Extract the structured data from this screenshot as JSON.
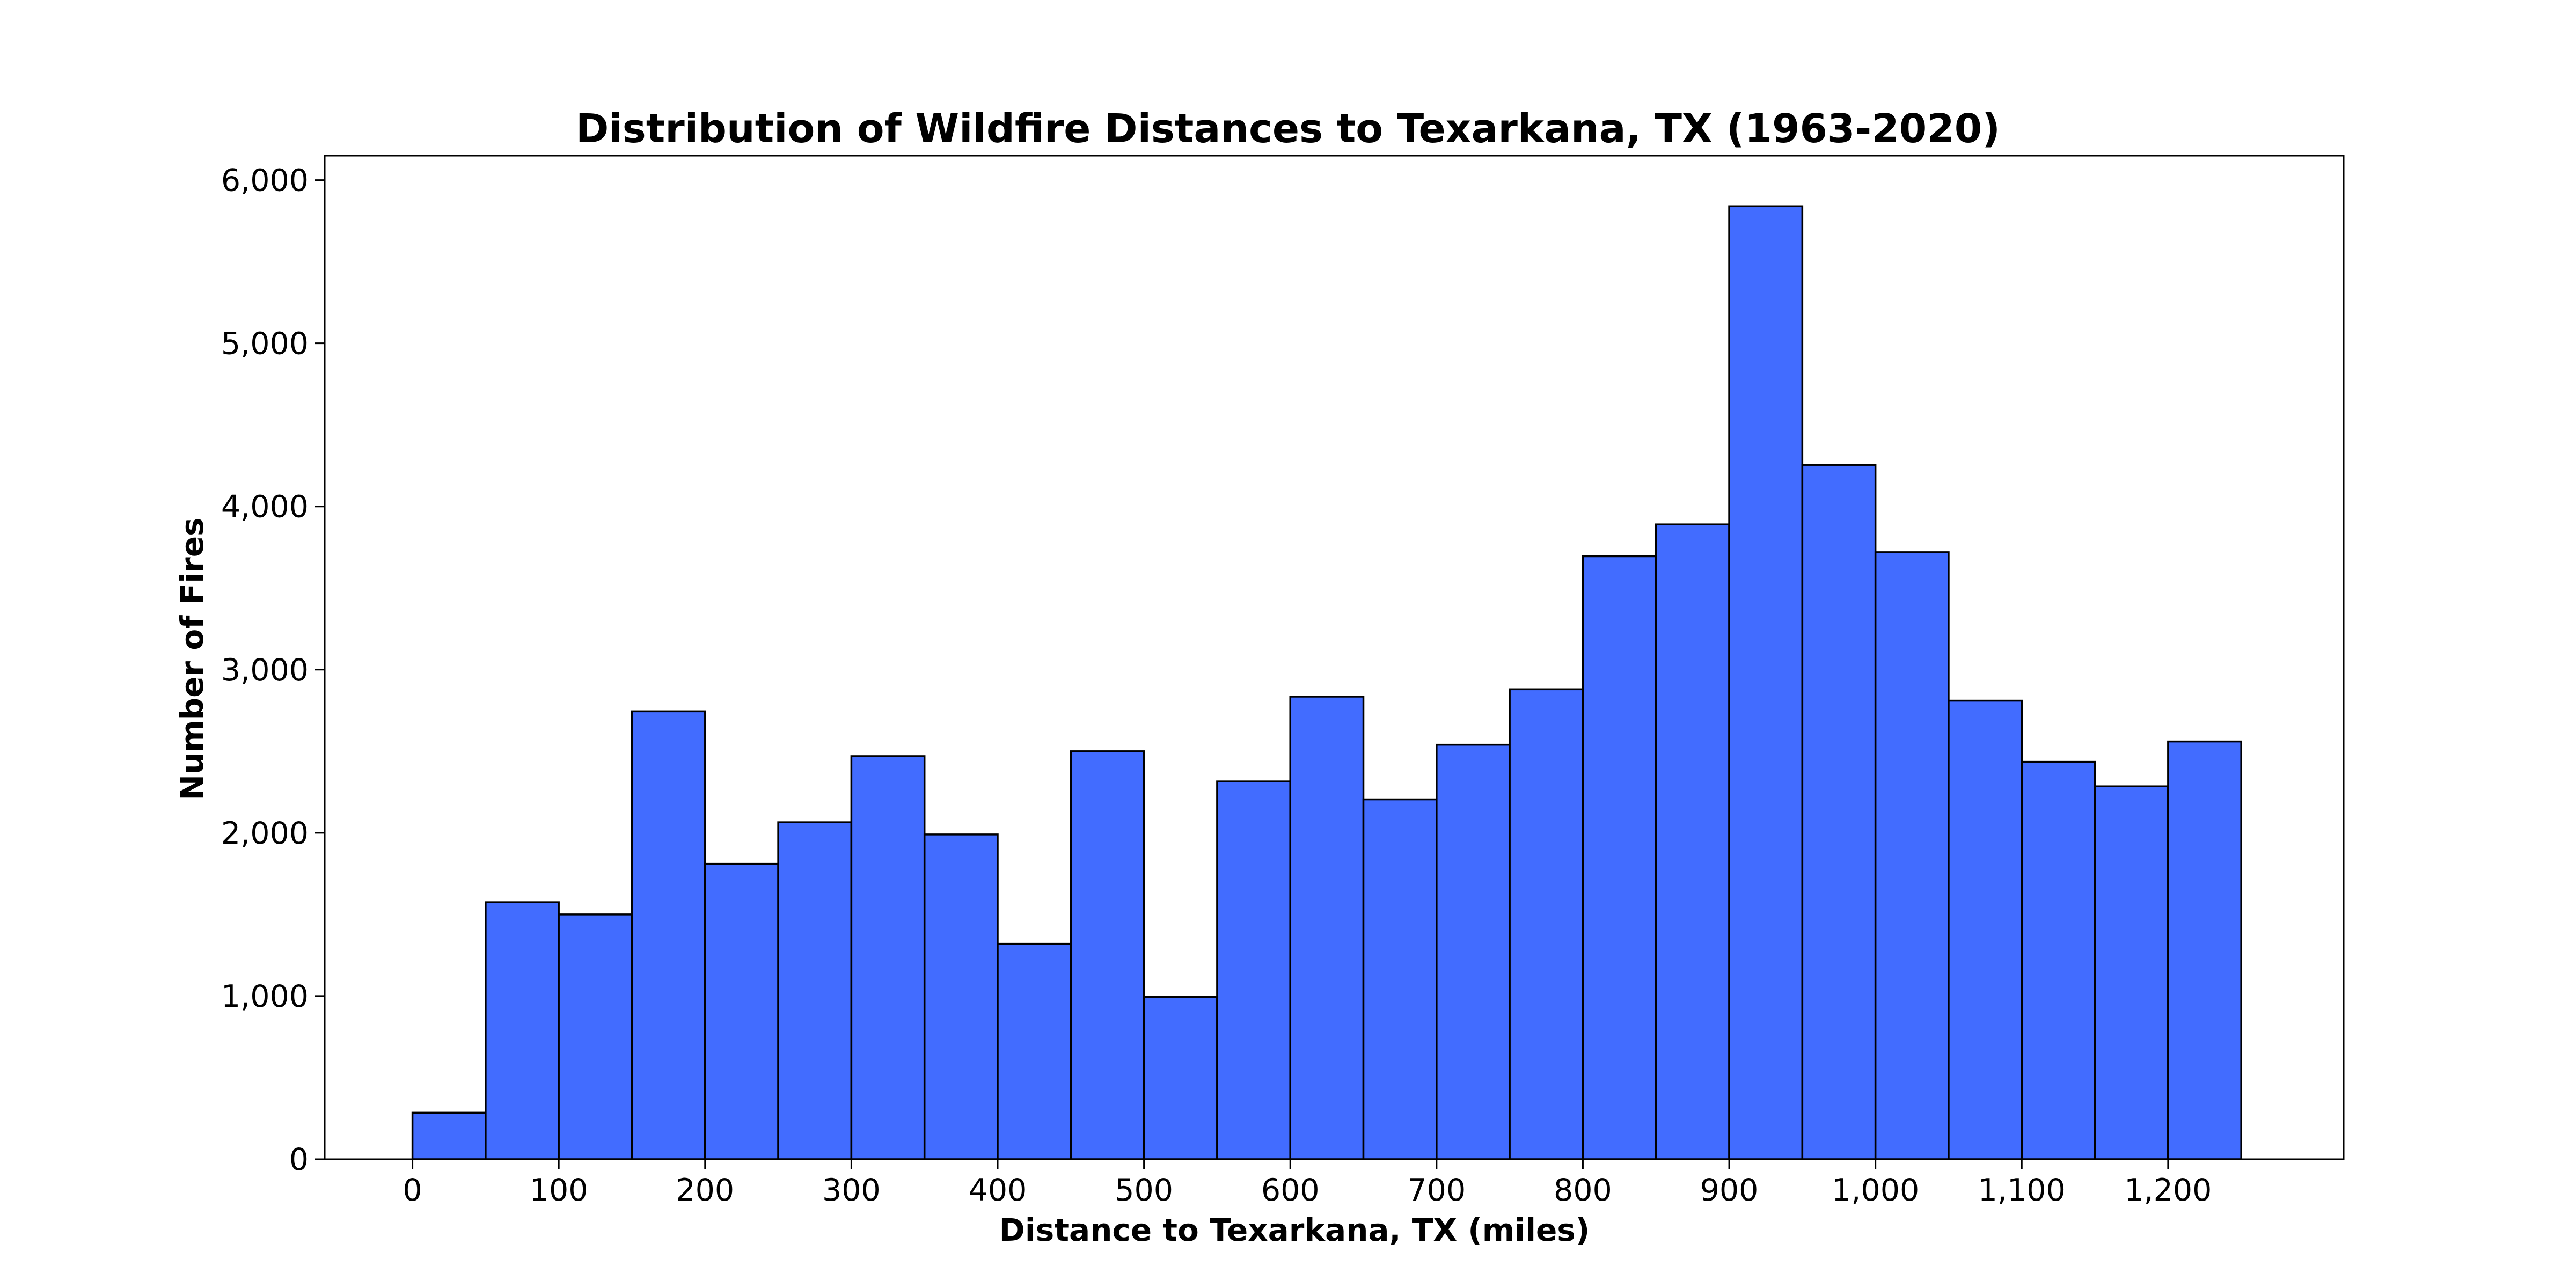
{
  "chart_data": {
    "type": "bar",
    "title": "Distribution of Wildfire Distances to Texarkana, TX (1963-2020)",
    "xlabel": "Distance to Texarkana, TX (miles)",
    "ylabel": "Number of Fires",
    "bin_edges": [
      0,
      50,
      100,
      150,
      200,
      250,
      300,
      350,
      400,
      450,
      500,
      550,
      600,
      650,
      700,
      750,
      800,
      850,
      900,
      950,
      1000,
      1050,
      1100,
      1150,
      1200,
      1250
    ],
    "values": [
      285,
      1575,
      1500,
      2745,
      1810,
      2065,
      2470,
      1990,
      1320,
      2500,
      995,
      2315,
      2835,
      2205,
      2540,
      2880,
      3695,
      3890,
      5840,
      4255,
      3720,
      2810,
      2435,
      2285,
      2560
    ],
    "xlim": [
      -60,
      1320
    ],
    "ylim": [
      0,
      6150
    ],
    "xticks": [
      0,
      100,
      200,
      300,
      400,
      500,
      600,
      700,
      800,
      900,
      1000,
      1100,
      1200
    ],
    "xtick_labels": [
      "0",
      "100",
      "200",
      "300",
      "400",
      "500",
      "600",
      "700",
      "800",
      "900",
      "1,000",
      "1,100",
      "1,200"
    ],
    "yticks": [
      0,
      1000,
      2000,
      3000,
      4000,
      5000,
      6000
    ],
    "ytick_labels": [
      "0",
      "1,000",
      "2,000",
      "3,000",
      "4,000",
      "5,000",
      "6,000"
    ],
    "bar_color": "#426cff",
    "edge_color": "#000000",
    "grid": false,
    "legend": false
  }
}
